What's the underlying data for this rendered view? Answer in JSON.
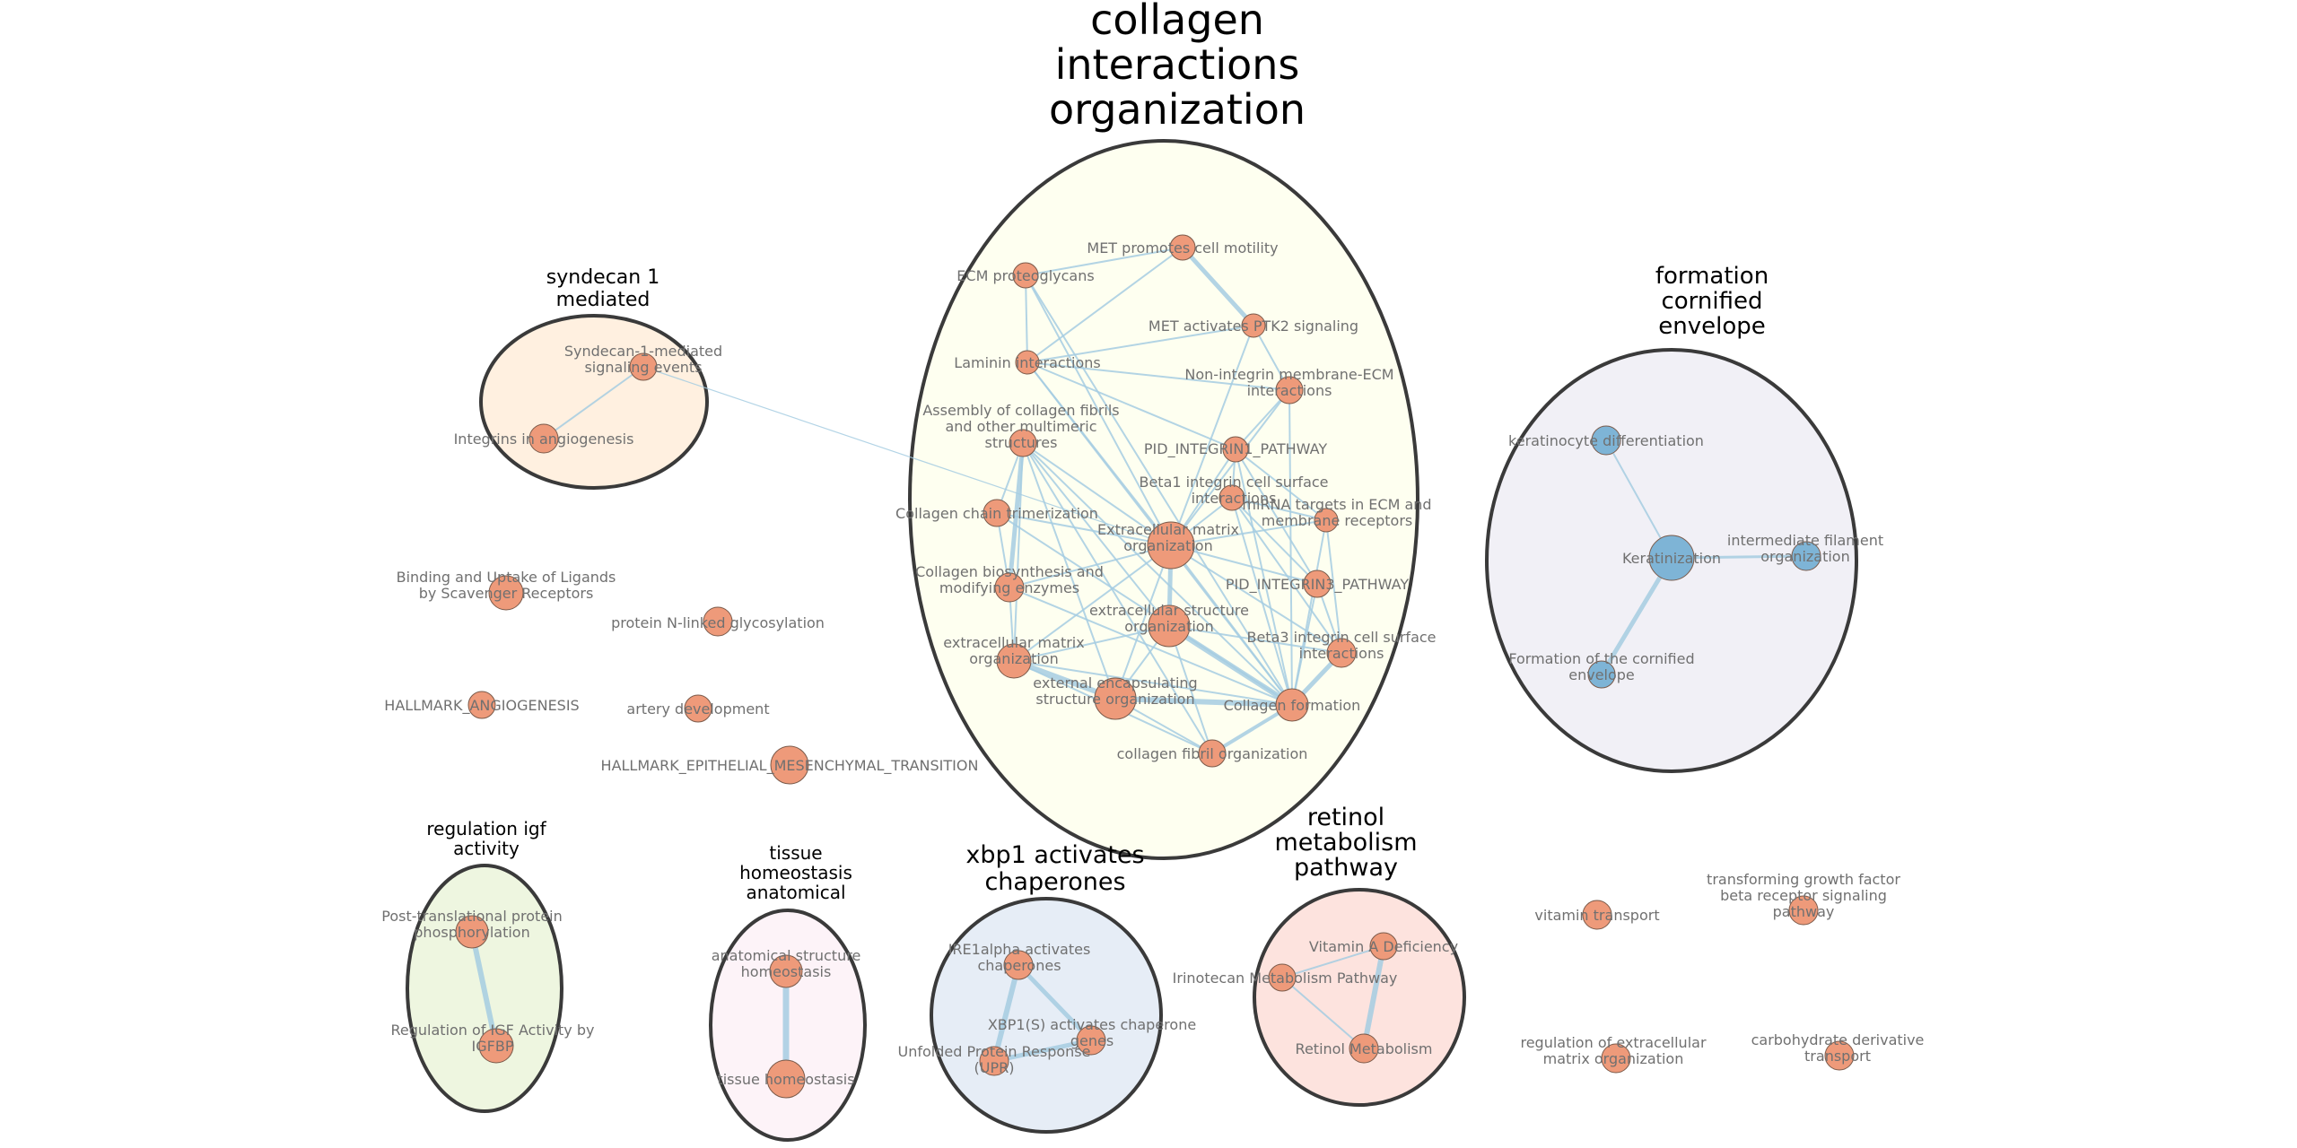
{
  "colors": {
    "node_orange": "#ee9a7a",
    "node_blue": "#7eb4d6",
    "edge": "#a6cde2",
    "cluster_stroke": "#3a3a3a"
  },
  "clusters": [
    {
      "id": "collagen",
      "title": [
        "collagen",
        "interactions",
        "organization"
      ],
      "fill": "#fefff0"
    },
    {
      "id": "syndecan",
      "title": [
        "syndecan 1",
        "mediated"
      ],
      "fill": "#fff0e0"
    },
    {
      "id": "cornified",
      "title": [
        "formation",
        "cornified",
        "envelope"
      ],
      "fill": "#f1f0f6"
    },
    {
      "id": "igf",
      "title": [
        "regulation igf",
        "activity"
      ],
      "fill": "#eef6e0"
    },
    {
      "id": "tissue",
      "title": [
        "tissue",
        "homeostasis",
        "anatomical"
      ],
      "fill": "#fdf3f8"
    },
    {
      "id": "xbp1",
      "title": [
        "xbp1 activates",
        "chaperones"
      ],
      "fill": "#e6edf6"
    },
    {
      "id": "retinol",
      "title": [
        "retinol",
        "metabolism",
        "pathway"
      ],
      "fill": "#fde3de"
    }
  ],
  "nodes": [
    {
      "id": "met_motility",
      "label": [
        "MET promotes cell motility"
      ],
      "color": "orange"
    },
    {
      "id": "ecm_proteoglycans",
      "label": [
        "ECM proteoglycans"
      ],
      "color": "orange"
    },
    {
      "id": "met_ptk2",
      "label": [
        "MET activates PTK2 signaling"
      ],
      "color": "orange"
    },
    {
      "id": "laminin",
      "label": [
        "Laminin interactions"
      ],
      "color": "orange"
    },
    {
      "id": "non_integrin",
      "label": [
        "Non-integrin membrane-ECM",
        "interactions"
      ],
      "color": "orange"
    },
    {
      "id": "assembly_collagen",
      "label": [
        "Assembly of collagen fibrils",
        "and other multimeric",
        "structures"
      ],
      "color": "orange"
    },
    {
      "id": "pid_integrin1",
      "label": [
        "PID_INTEGRIN1_PATHWAY"
      ],
      "color": "orange"
    },
    {
      "id": "beta1_integrin",
      "label": [
        "Beta1 integrin cell surface",
        "interactions"
      ],
      "color": "orange"
    },
    {
      "id": "syndecan_targets",
      "label": [
        "Syndecan-1-mediated",
        "signaling events"
      ],
      "color": "orange"
    },
    {
      "id": "integrins_angiogenesis",
      "label": [
        "Integrins in angiogenesis"
      ],
      "color": "orange"
    },
    {
      "id": "collagen_trimerization",
      "label": [
        "Collagen chain trimerization"
      ],
      "color": "orange"
    },
    {
      "id": "mirna_ecm",
      "label": [
        "miRNA targets in ECM and",
        "membrane receptors"
      ],
      "color": "orange"
    },
    {
      "id": "ecm_organization_main",
      "label": [
        "Extracellular matrix",
        "organization"
      ],
      "color": "orange"
    },
    {
      "id": "collagen_biosynthesis",
      "label": [
        "Collagen biosynthesis and",
        "modifying enzymes"
      ],
      "color": "orange"
    },
    {
      "id": "pid_integrin3",
      "label": [
        "PID_INTEGRIN3_PATHWAY"
      ],
      "color": "orange"
    },
    {
      "id": "extracellular_structure",
      "label": [
        "extracellular structure",
        "organization"
      ],
      "color": "orange"
    },
    {
      "id": "ecm_organization_lower",
      "label": [
        "extracellular matrix",
        "organization"
      ],
      "color": "orange"
    },
    {
      "id": "beta3_integrin",
      "label": [
        "Beta3 integrin cell surface",
        "interactions"
      ],
      "color": "orange"
    },
    {
      "id": "external_encapsulating",
      "label": [
        "external encapsulating",
        "structure organization"
      ],
      "color": "orange"
    },
    {
      "id": "collagen_formation",
      "label": [
        "Collagen formation"
      ],
      "color": "orange"
    },
    {
      "id": "collagen_fibril",
      "label": [
        "collagen fibril organization"
      ],
      "color": "orange"
    },
    {
      "id": "binding_uptake",
      "label": [
        "Binding and Uptake of Ligands",
        "by Scavenger Receptors"
      ],
      "color": "orange"
    },
    {
      "id": "protein_n_linked",
      "label": [
        "protein N-linked glycosylation"
      ],
      "color": "orange"
    },
    {
      "id": "hallmark_angiogenesis",
      "label": [
        "HALLMARK_ANGIOGENESIS"
      ],
      "color": "orange"
    },
    {
      "id": "artery_development",
      "label": [
        "artery development"
      ],
      "color": "orange"
    },
    {
      "id": "hallmark_emt",
      "label": [
        "HALLMARK_EPITHELIAL_MESENCHYMAL_TRANSITION"
      ],
      "color": "orange"
    },
    {
      "id": "keratinocyte_diff",
      "label": [
        "keratinocyte differentiation"
      ],
      "color": "blue"
    },
    {
      "id": "keratinization",
      "label": [
        "Keratinization"
      ],
      "color": "blue"
    },
    {
      "id": "intermediate_filament",
      "label": [
        "intermediate filament",
        "organization"
      ],
      "color": "blue"
    },
    {
      "id": "cornified_envelope",
      "label": [
        "Formation of the cornified",
        "envelope"
      ],
      "color": "blue"
    },
    {
      "id": "post_translational",
      "label": [
        "Post-translational protein",
        "phosphorylation"
      ],
      "color": "orange"
    },
    {
      "id": "regulation_igf",
      "label": [
        "Regulation of IGF Activity by",
        "IGFBP"
      ],
      "color": "orange"
    },
    {
      "id": "anatomical_homeostasis",
      "label": [
        "anatomical structure",
        "homeostasis"
      ],
      "color": "orange"
    },
    {
      "id": "tissue_homeostasis",
      "label": [
        "tissue homeostasis"
      ],
      "color": "orange"
    },
    {
      "id": "ire1alpha",
      "label": [
        "IRE1alpha activates",
        "chaperones"
      ],
      "color": "orange"
    },
    {
      "id": "xbp1s",
      "label": [
        "XBP1(S) activates chaperone",
        "genes"
      ],
      "color": "orange"
    },
    {
      "id": "upr",
      "label": [
        "Unfolded Protein Response",
        "(UPR)"
      ],
      "color": "orange"
    },
    {
      "id": "vitamin_a_deficiency",
      "label": [
        "Vitamin A Deficiency"
      ],
      "color": "orange"
    },
    {
      "id": "irinotecan",
      "label": [
        "Irinotecan Metabolism Pathway"
      ],
      "color": "orange"
    },
    {
      "id": "retinol_metabolism",
      "label": [
        "Retinol Metabolism"
      ],
      "color": "orange"
    },
    {
      "id": "vitamin_transport",
      "label": [
        "vitamin transport"
      ],
      "color": "orange"
    },
    {
      "id": "tgf_beta",
      "label": [
        "transforming growth factor",
        "beta receptor signaling",
        "pathway"
      ],
      "color": "orange"
    },
    {
      "id": "regulation_ecm",
      "label": [
        "regulation of extracellular",
        "matrix organization"
      ],
      "color": "orange"
    },
    {
      "id": "carbohydrate_transport",
      "label": [
        "carbohydrate derivative",
        "transport"
      ],
      "color": "orange"
    }
  ],
  "edges": [
    [
      "met_motility",
      "met_ptk2"
    ],
    [
      "met_motility",
      "ecm_proteoglycans"
    ],
    [
      "met_motility",
      "laminin"
    ],
    [
      "met_ptk2",
      "laminin"
    ],
    [
      "met_ptk2",
      "non_integrin"
    ],
    [
      "met_ptk2",
      "ecm_organization_main"
    ],
    [
      "ecm_proteoglycans",
      "laminin"
    ],
    [
      "ecm_proteoglycans",
      "ecm_organization_main"
    ],
    [
      "ecm_proteoglycans",
      "collagen_formation"
    ],
    [
      "laminin",
      "non_integrin"
    ],
    [
      "laminin",
      "ecm_organization_main"
    ],
    [
      "laminin",
      "collagen_formation"
    ],
    [
      "laminin",
      "pid_integrin1"
    ],
    [
      "non_integrin",
      "ecm_organization_main"
    ],
    [
      "non_integrin",
      "collagen_formation"
    ],
    [
      "non_integrin",
      "pid_integrin1"
    ],
    [
      "assembly_collagen",
      "collagen_trimerization"
    ],
    [
      "assembly_collagen",
      "collagen_biosynthesis"
    ],
    [
      "assembly_collagen",
      "ecm_organization_main"
    ],
    [
      "assembly_collagen",
      "collagen_formation"
    ],
    [
      "assembly_collagen",
      "external_encapsulating"
    ],
    [
      "assembly_collagen",
      "collagen_fibril"
    ],
    [
      "assembly_collagen",
      "extracellular_structure"
    ],
    [
      "assembly_collagen",
      "ecm_organization_lower"
    ],
    [
      "collagen_trimerization",
      "collagen_biosynthesis"
    ],
    [
      "collagen_trimerization",
      "ecm_organization_main"
    ],
    [
      "collagen_trimerization",
      "collagen_formation"
    ],
    [
      "collagen_biosynthesis",
      "ecm_organization_main"
    ],
    [
      "collagen_biosynthesis",
      "collagen_formation"
    ],
    [
      "collagen_biosynthesis",
      "ecm_organization_lower"
    ],
    [
      "ecm_organization_main",
      "extracellular_structure"
    ],
    [
      "ecm_organization_main",
      "ecm_organization_lower"
    ],
    [
      "ecm_organization_main",
      "external_encapsulating"
    ],
    [
      "ecm_organization_main",
      "collagen_formation"
    ],
    [
      "ecm_organization_main",
      "pid_integrin1"
    ],
    [
      "ecm_organization_main",
      "beta1_integrin"
    ],
    [
      "ecm_organization_main",
      "mirna_ecm"
    ],
    [
      "ecm_organization_main",
      "pid_integrin3"
    ],
    [
      "ecm_organization_main",
      "beta3_integrin"
    ],
    [
      "extracellular_structure",
      "ecm_organization_lower"
    ],
    [
      "extracellular_structure",
      "external_encapsulating"
    ],
    [
      "extracellular_structure",
      "collagen_formation"
    ],
    [
      "extracellular_structure",
      "collagen_fibril"
    ],
    [
      "extracellular_structure",
      "beta3_integrin"
    ],
    [
      "ecm_organization_lower",
      "external_encapsulating"
    ],
    [
      "ecm_organization_lower",
      "collagen_formation"
    ],
    [
      "ecm_organization_lower",
      "collagen_fibril"
    ],
    [
      "external_encapsulating",
      "collagen_formation"
    ],
    [
      "external_encapsulating",
      "collagen_fibril"
    ],
    [
      "collagen_formation",
      "collagen_fibril"
    ],
    [
      "collagen_formation",
      "beta3_integrin"
    ],
    [
      "collagen_formation",
      "pid_integrin3"
    ],
    [
      "collagen_formation",
      "beta1_integrin"
    ],
    [
      "collagen_formation",
      "pid_integrin1"
    ],
    [
      "collagen_formation",
      "mirna_ecm"
    ],
    [
      "pid_integrin1",
      "beta1_integrin"
    ],
    [
      "pid_integrin1",
      "mirna_ecm"
    ],
    [
      "pid_integrin1",
      "pid_integrin3"
    ],
    [
      "beta1_integrin",
      "mirna_ecm"
    ],
    [
      "beta1_integrin",
      "pid_integrin3"
    ],
    [
      "beta1_integrin",
      "beta3_integrin"
    ],
    [
      "pid_integrin3",
      "beta3_integrin"
    ],
    [
      "mirna_ecm",
      "beta3_integrin"
    ],
    [
      "syndecan_targets",
      "integrins_angiogenesis"
    ],
    [
      "syndecan_targets",
      "ecm_organization_main"
    ],
    [
      "keratinocyte_diff",
      "keratinization"
    ],
    [
      "keratinization",
      "intermediate_filament"
    ],
    [
      "keratinization",
      "cornified_envelope"
    ],
    [
      "post_translational",
      "regulation_igf"
    ],
    [
      "anatomical_homeostasis",
      "tissue_homeostasis"
    ],
    [
      "ire1alpha",
      "xbp1s"
    ],
    [
      "ire1alpha",
      "upr"
    ],
    [
      "xbp1s",
      "upr"
    ],
    [
      "vitamin_a_deficiency",
      "irinotecan"
    ],
    [
      "vitamin_a_deficiency",
      "retinol_metabolism"
    ],
    [
      "irinotecan",
      "retinol_metabolism"
    ]
  ]
}
